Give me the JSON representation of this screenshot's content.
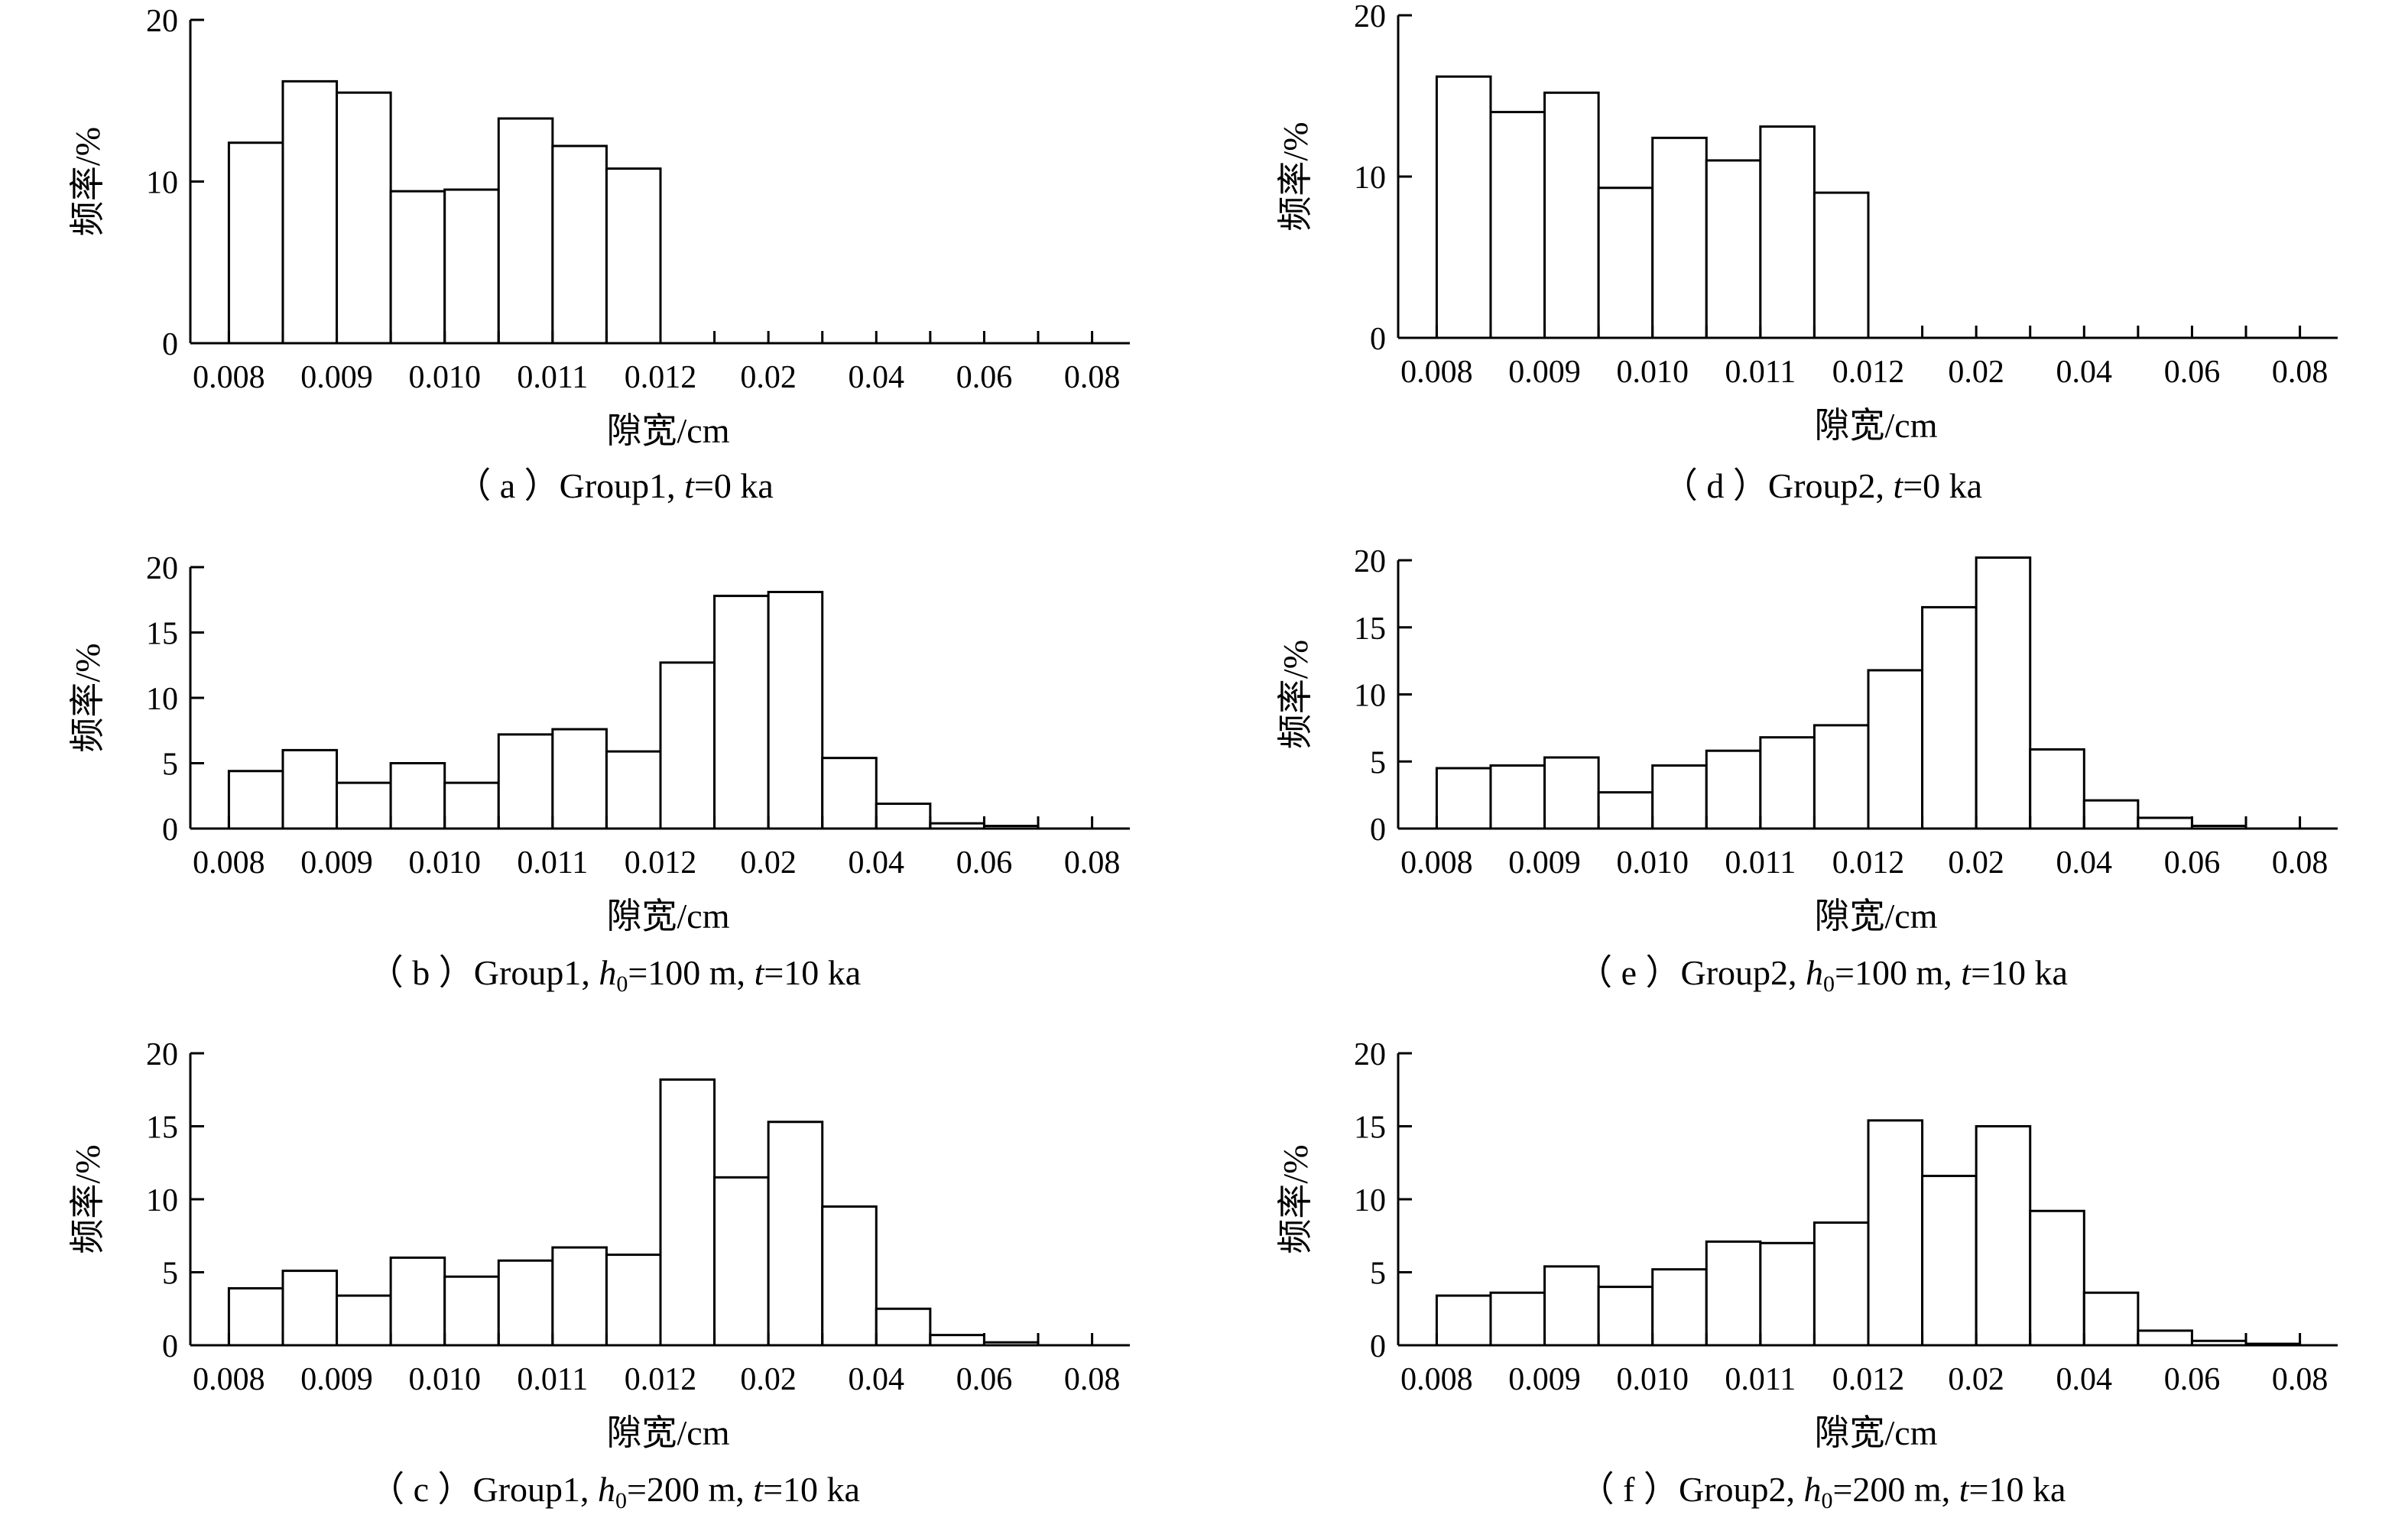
{
  "tick_labels_x": [
    "0.008",
    "0.009",
    "0.010",
    "0.011",
    "0.012",
    "0.02",
    "0.04",
    "0.06",
    "0.08"
  ],
  "chart_data": [
    {
      "id": "a",
      "type": "bar",
      "caption": {
        "prefix": "（ a ）Group1, ",
        "parts": [
          {
            "t": "t",
            "italic": true
          },
          {
            "t": "=0 ka"
          }
        ]
      },
      "xlabel": "隙宽/cm",
      "ylabel": "频率/%",
      "ylim": [
        0,
        20
      ],
      "yticks": [
        0,
        10,
        20
      ],
      "values": [
        12.4,
        16.2,
        15.5,
        9.4,
        9.5,
        13.9,
        12.2,
        10.8,
        0,
        0,
        0,
        0,
        0,
        0,
        0,
        0
      ]
    },
    {
      "id": "d",
      "type": "bar",
      "caption": {
        "prefix": "（ d ）Group2, ",
        "parts": [
          {
            "t": "t",
            "italic": true
          },
          {
            "t": "=0 ka"
          }
        ]
      },
      "xlabel": "隙宽/cm",
      "ylabel": "频率/%",
      "ylim": [
        0,
        20
      ],
      "yticks": [
        0,
        10,
        20
      ],
      "values": [
        16.2,
        14.0,
        15.2,
        9.3,
        12.4,
        11.0,
        13.1,
        9.0,
        0,
        0,
        0,
        0,
        0,
        0,
        0,
        0
      ]
    },
    {
      "id": "b",
      "type": "bar",
      "caption": {
        "prefix": "（ b ）Group1, ",
        "parts": [
          {
            "t": "h",
            "italic": true
          },
          {
            "t": "0",
            "sub": true
          },
          {
            "t": "=100 m, "
          },
          {
            "t": "t",
            "italic": true
          },
          {
            "t": "=10 ka"
          }
        ]
      },
      "xlabel": "隙宽/cm",
      "ylabel": "频率/%",
      "ylim": [
        0,
        20
      ],
      "yticks": [
        0,
        5,
        10,
        15,
        20
      ],
      "values": [
        4.4,
        6.0,
        3.5,
        5.0,
        3.5,
        7.2,
        7.6,
        5.9,
        12.7,
        17.8,
        18.1,
        5.4,
        1.9,
        0.4,
        0.2,
        0
      ]
    },
    {
      "id": "e",
      "type": "bar",
      "caption": {
        "prefix": "（ e ）Group2, ",
        "parts": [
          {
            "t": "h",
            "italic": true
          },
          {
            "t": "0",
            "sub": true
          },
          {
            "t": "=100 m, "
          },
          {
            "t": "t",
            "italic": true
          },
          {
            "t": "=10 ka"
          }
        ]
      },
      "xlabel": "隙宽/cm",
      "ylabel": "频率/%",
      "ylim": [
        0,
        20
      ],
      "yticks": [
        0,
        5,
        10,
        15,
        20
      ],
      "values": [
        4.5,
        4.7,
        5.3,
        2.7,
        4.7,
        5.8,
        6.8,
        7.7,
        11.8,
        16.5,
        20.2,
        5.9,
        2.1,
        0.8,
        0.2,
        0
      ]
    },
    {
      "id": "c",
      "type": "bar",
      "caption": {
        "prefix": "（ c ）Group1, ",
        "parts": [
          {
            "t": "h",
            "italic": true
          },
          {
            "t": "0",
            "sub": true
          },
          {
            "t": "=200 m, "
          },
          {
            "t": "t",
            "italic": true
          },
          {
            "t": "=10 ka"
          }
        ]
      },
      "xlabel": "隙宽/cm",
      "ylabel": "频率/%",
      "ylim": [
        0,
        20
      ],
      "yticks": [
        0,
        5,
        10,
        15,
        20
      ],
      "values": [
        3.9,
        5.1,
        3.4,
        6.0,
        4.7,
        5.8,
        6.7,
        6.2,
        18.2,
        11.5,
        15.3,
        9.5,
        2.5,
        0.7,
        0.2,
        0
      ]
    },
    {
      "id": "f",
      "type": "bar",
      "caption": {
        "prefix": "（ f ）Group2, ",
        "parts": [
          {
            "t": "h",
            "italic": true
          },
          {
            "t": "0",
            "sub": true
          },
          {
            "t": "=200 m, "
          },
          {
            "t": "t",
            "italic": true
          },
          {
            "t": "=10 ka"
          }
        ]
      },
      "xlabel": "隙宽/cm",
      "ylabel": "频率/%",
      "ylim": [
        0,
        20
      ],
      "yticks": [
        0,
        5,
        10,
        15,
        20
      ],
      "values": [
        3.4,
        3.6,
        5.4,
        4.0,
        5.2,
        7.1,
        7.0,
        8.4,
        15.4,
        11.6,
        15.0,
        9.2,
        3.6,
        1.0,
        0.3,
        0.1
      ]
    }
  ]
}
